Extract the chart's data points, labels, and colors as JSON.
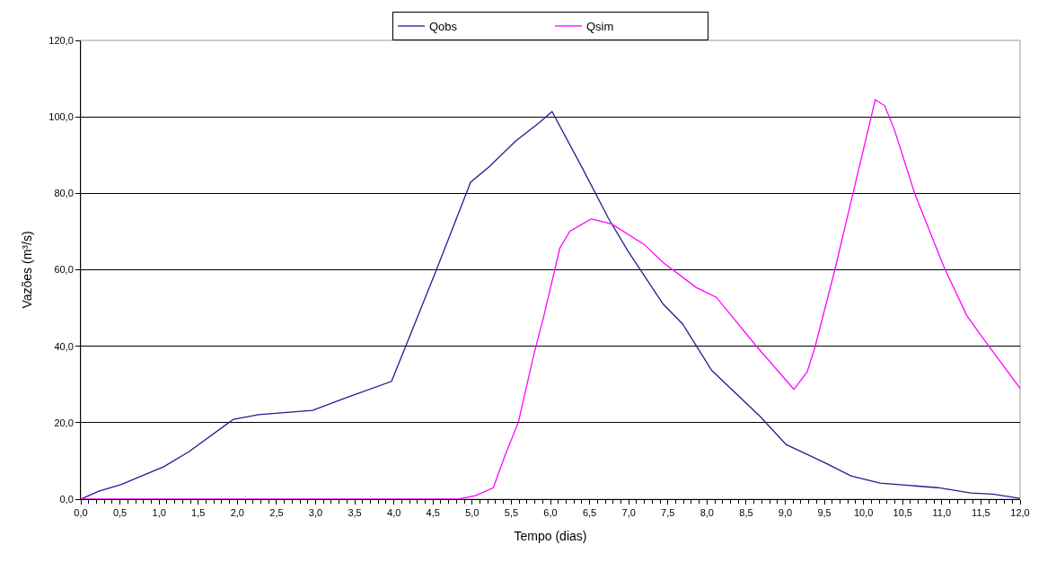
{
  "chart_data": {
    "type": "line",
    "xlabel": "Tempo (dias)",
    "ylabel": "Vazões (m³/s)",
    "xlim": [
      0,
      12
    ],
    "ylim": [
      0,
      120
    ],
    "xticks": [
      {
        "value": 0,
        "label": "0,0"
      },
      {
        "value": 0.5,
        "label": "0,5"
      },
      {
        "value": 1,
        "label": "1,0"
      },
      {
        "value": 1.5,
        "label": "1,5"
      },
      {
        "value": 2,
        "label": "2,0"
      },
      {
        "value": 2.5,
        "label": "2,5"
      },
      {
        "value": 3,
        "label": "3,0"
      },
      {
        "value": 3.5,
        "label": "3,5"
      },
      {
        "value": 4,
        "label": "4,0"
      },
      {
        "value": 4.5,
        "label": "4,5"
      },
      {
        "value": 5,
        "label": "5,0"
      },
      {
        "value": 5.5,
        "label": "5,5"
      },
      {
        "value": 6,
        "label": "6,0"
      },
      {
        "value": 6.5,
        "label": "6,5"
      },
      {
        "value": 7,
        "label": "7,0"
      },
      {
        "value": 7.5,
        "label": "7,5"
      },
      {
        "value": 8,
        "label": "8,0"
      },
      {
        "value": 8.5,
        "label": "8,5"
      },
      {
        "value": 9,
        "label": "9,0"
      },
      {
        "value": 9.5,
        "label": "9,5"
      },
      {
        "value": 10,
        "label": "10,0"
      },
      {
        "value": 10.5,
        "label": "10,5"
      },
      {
        "value": 11,
        "label": "11,0"
      },
      {
        "value": 11.5,
        "label": "11,5"
      },
      {
        "value": 12,
        "label": "12,0"
      }
    ],
    "yticks": [
      {
        "value": 0,
        "label": "0,0"
      },
      {
        "value": 20,
        "label": "20,0"
      },
      {
        "value": 40,
        "label": "40,0"
      },
      {
        "value": 60,
        "label": "60,0"
      },
      {
        "value": 80,
        "label": "80,0"
      },
      {
        "value": 100,
        "label": "100,0"
      },
      {
        "value": 120,
        "label": "120,0"
      }
    ],
    "grid": "y",
    "legend": "top",
    "marker": "none",
    "line_style": "solid",
    "series": [
      {
        "name": "Qobs",
        "color": "#1f1f8f",
        "x": [
          0,
          0.23,
          0.51,
          1.06,
          1.38,
          1.95,
          2.27,
          2.96,
          3.41,
          3.97,
          4.17,
          4.54,
          4.98,
          5.23,
          5.55,
          5.87,
          6.02,
          6.41,
          6.74,
          6.99,
          7.44,
          7.69,
          8.06,
          8.68,
          9.01,
          9.51,
          9.84,
          10.21,
          10.95,
          11.37,
          11.65,
          12
        ],
        "values": [
          0,
          2.1,
          3.8,
          8.5,
          12.4,
          20.9,
          22.1,
          23.2,
          26.7,
          30.8,
          41,
          59.8,
          82.9,
          87.2,
          93.6,
          98.7,
          101.4,
          86.5,
          73.5,
          64.9,
          51,
          45.8,
          33.7,
          21.6,
          14.3,
          9.5,
          6.1,
          4.2,
          3,
          1.6,
          1.3,
          0.2
        ]
      },
      {
        "name": "Qsim",
        "color": "#ff00ff",
        "x": [
          0,
          4.82,
          5.04,
          5.27,
          5.43,
          5.59,
          5.79,
          5.92,
          6.12,
          6.25,
          6.52,
          6.78,
          7.2,
          7.44,
          7.86,
          8.12,
          8.64,
          9.11,
          9.28,
          9.38,
          9.63,
          9.88,
          10.15,
          10.27,
          10.39,
          10.66,
          11.03,
          11.32,
          11.53,
          12
        ],
        "values": [
          0,
          0,
          0.9,
          3,
          12,
          20.1,
          38,
          48.3,
          65.7,
          70.1,
          73.3,
          72,
          66.6,
          61.9,
          55.4,
          52.8,
          39.8,
          28.7,
          33.3,
          39.8,
          59.7,
          81.3,
          104.5,
          102.9,
          96.9,
          79.6,
          60.6,
          48,
          42,
          29
        ]
      }
    ]
  }
}
